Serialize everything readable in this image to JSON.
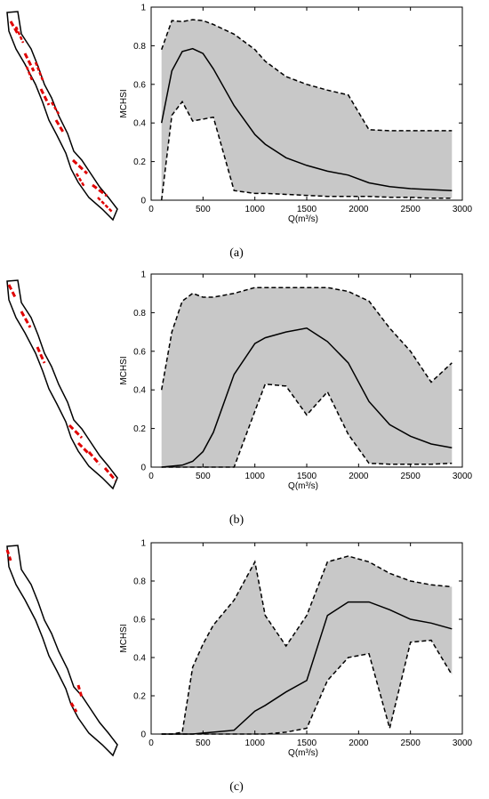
{
  "chart_data": [
    {
      "type": "area",
      "caption": "(a)",
      "xlabel": "Q(m³/s)",
      "ylabel": "MCHSI",
      "xlim": [
        0,
        3000
      ],
      "ylim": [
        0,
        1
      ],
      "x_ticks": [
        "0",
        "500",
        "1000",
        "1500",
        "2000",
        "2500",
        "3000"
      ],
      "y_ticks": [
        "0",
        "0.2",
        "0.4",
        "0.6",
        "0.8",
        "1"
      ],
      "series": [
        {
          "role": "mean",
          "style": "solid",
          "x": [
            100,
            200,
            300,
            400,
            500,
            600,
            800,
            1000,
            1100,
            1300,
            1500,
            1700,
            1900,
            2100,
            2300,
            2500,
            2700,
            2900
          ],
          "y": [
            0.4,
            0.67,
            0.77,
            0.785,
            0.76,
            0.68,
            0.49,
            0.34,
            0.29,
            0.22,
            0.18,
            0.15,
            0.13,
            0.09,
            0.07,
            0.06,
            0.055,
            0.05
          ]
        },
        {
          "role": "upper",
          "style": "dashed",
          "x": [
            100,
            200,
            300,
            400,
            500,
            600,
            800,
            1000,
            1100,
            1300,
            1500,
            1700,
            1900,
            2100,
            2300,
            2500,
            2700,
            2900
          ],
          "y": [
            0.78,
            0.93,
            0.925,
            0.935,
            0.93,
            0.91,
            0.86,
            0.78,
            0.72,
            0.64,
            0.6,
            0.57,
            0.545,
            0.365,
            0.36,
            0.36,
            0.36,
            0.36
          ]
        },
        {
          "role": "lower",
          "style": "dashed",
          "x": [
            100,
            200,
            300,
            400,
            500,
            600,
            800,
            1000,
            1100,
            1300,
            1500,
            1700,
            1900,
            2100,
            2300,
            2500,
            2700,
            2900
          ],
          "y": [
            0.0,
            0.44,
            0.51,
            0.41,
            0.42,
            0.43,
            0.05,
            0.035,
            0.035,
            0.03,
            0.025,
            0.02,
            0.02,
            0.02,
            0.015,
            0.015,
            0.01,
            0.01
          ]
        }
      ]
    },
    {
      "type": "area",
      "caption": "(b)",
      "xlabel": "Q(m³/s)",
      "ylabel": "MCHSI",
      "xlim": [
        0,
        3000
      ],
      "ylim": [
        0,
        1
      ],
      "x_ticks": [
        "0",
        "500",
        "1000",
        "1500",
        "2000",
        "2500",
        "3000"
      ],
      "y_ticks": [
        "0",
        "0.2",
        "0.4",
        "0.6",
        "0.8",
        "1"
      ],
      "series": [
        {
          "role": "mean",
          "style": "solid",
          "x": [
            100,
            200,
            300,
            400,
            500,
            600,
            800,
            1000,
            1100,
            1300,
            1500,
            1700,
            1900,
            2100,
            2300,
            2500,
            2700,
            2900
          ],
          "y": [
            0.0,
            0.005,
            0.01,
            0.03,
            0.08,
            0.18,
            0.48,
            0.64,
            0.67,
            0.7,
            0.72,
            0.65,
            0.54,
            0.34,
            0.22,
            0.16,
            0.12,
            0.1
          ]
        },
        {
          "role": "upper",
          "style": "dashed",
          "x": [
            100,
            200,
            300,
            400,
            500,
            600,
            800,
            1000,
            1100,
            1300,
            1500,
            1700,
            1900,
            2100,
            2300,
            2500,
            2700,
            2900
          ],
          "y": [
            0.4,
            0.7,
            0.86,
            0.9,
            0.88,
            0.88,
            0.9,
            0.93,
            0.93,
            0.93,
            0.93,
            0.93,
            0.91,
            0.86,
            0.72,
            0.6,
            0.44,
            0.54
          ]
        },
        {
          "role": "lower",
          "style": "dashed",
          "x": [
            100,
            200,
            300,
            400,
            500,
            600,
            800,
            1000,
            1100,
            1300,
            1500,
            1700,
            1900,
            2100,
            2300,
            2500,
            2700,
            2900
          ],
          "y": [
            0.0,
            0.0,
            0.0,
            0.0,
            0.0,
            0.0,
            0.0,
            0.29,
            0.43,
            0.42,
            0.27,
            0.39,
            0.17,
            0.02,
            0.015,
            0.015,
            0.015,
            0.02
          ]
        }
      ]
    },
    {
      "type": "area",
      "caption": "(c)",
      "xlabel": "Q(m³/s)",
      "ylabel": "MCHSI",
      "xlim": [
        0,
        3000
      ],
      "ylim": [
        0,
        1
      ],
      "x_ticks": [
        "0",
        "500",
        "1000",
        "1500",
        "2000",
        "2500",
        "3000"
      ],
      "y_ticks": [
        "0",
        "0.2",
        "0.4",
        "0.6",
        "0.8",
        "1"
      ],
      "series": [
        {
          "role": "mean",
          "style": "solid",
          "x": [
            100,
            200,
            300,
            400,
            500,
            600,
            800,
            1000,
            1100,
            1300,
            1500,
            1700,
            1900,
            2100,
            2300,
            2500,
            2700,
            2900
          ],
          "y": [
            0.0,
            0.0,
            0.0,
            0.0,
            0.005,
            0.01,
            0.02,
            0.12,
            0.15,
            0.22,
            0.28,
            0.62,
            0.69,
            0.69,
            0.65,
            0.6,
            0.58,
            0.55
          ]
        },
        {
          "role": "upper",
          "style": "dashed",
          "x": [
            100,
            200,
            300,
            400,
            500,
            600,
            800,
            1000,
            1100,
            1300,
            1500,
            1700,
            1900,
            2100,
            2300,
            2500,
            2700,
            2900
          ],
          "y": [
            0.0,
            0.0,
            0.01,
            0.35,
            0.47,
            0.57,
            0.7,
            0.9,
            0.62,
            0.46,
            0.62,
            0.9,
            0.93,
            0.9,
            0.84,
            0.8,
            0.78,
            0.77
          ]
        },
        {
          "role": "lower",
          "style": "dashed",
          "x": [
            100,
            200,
            300,
            400,
            500,
            600,
            800,
            1000,
            1100,
            1300,
            1500,
            1700,
            1900,
            2100,
            2300,
            2500,
            2700,
            2900
          ],
          "y": [
            0.0,
            0.0,
            0.0,
            0.0,
            0.0,
            0.0,
            0.0,
            0.0,
            0.0,
            0.01,
            0.03,
            0.28,
            0.4,
            0.42,
            0.03,
            0.48,
            0.49,
            0.31
          ]
        }
      ]
    }
  ],
  "colors": {
    "band": "#c8c8c8",
    "line": "#000000",
    "habitat": "#e00000",
    "axis": "#000000"
  }
}
